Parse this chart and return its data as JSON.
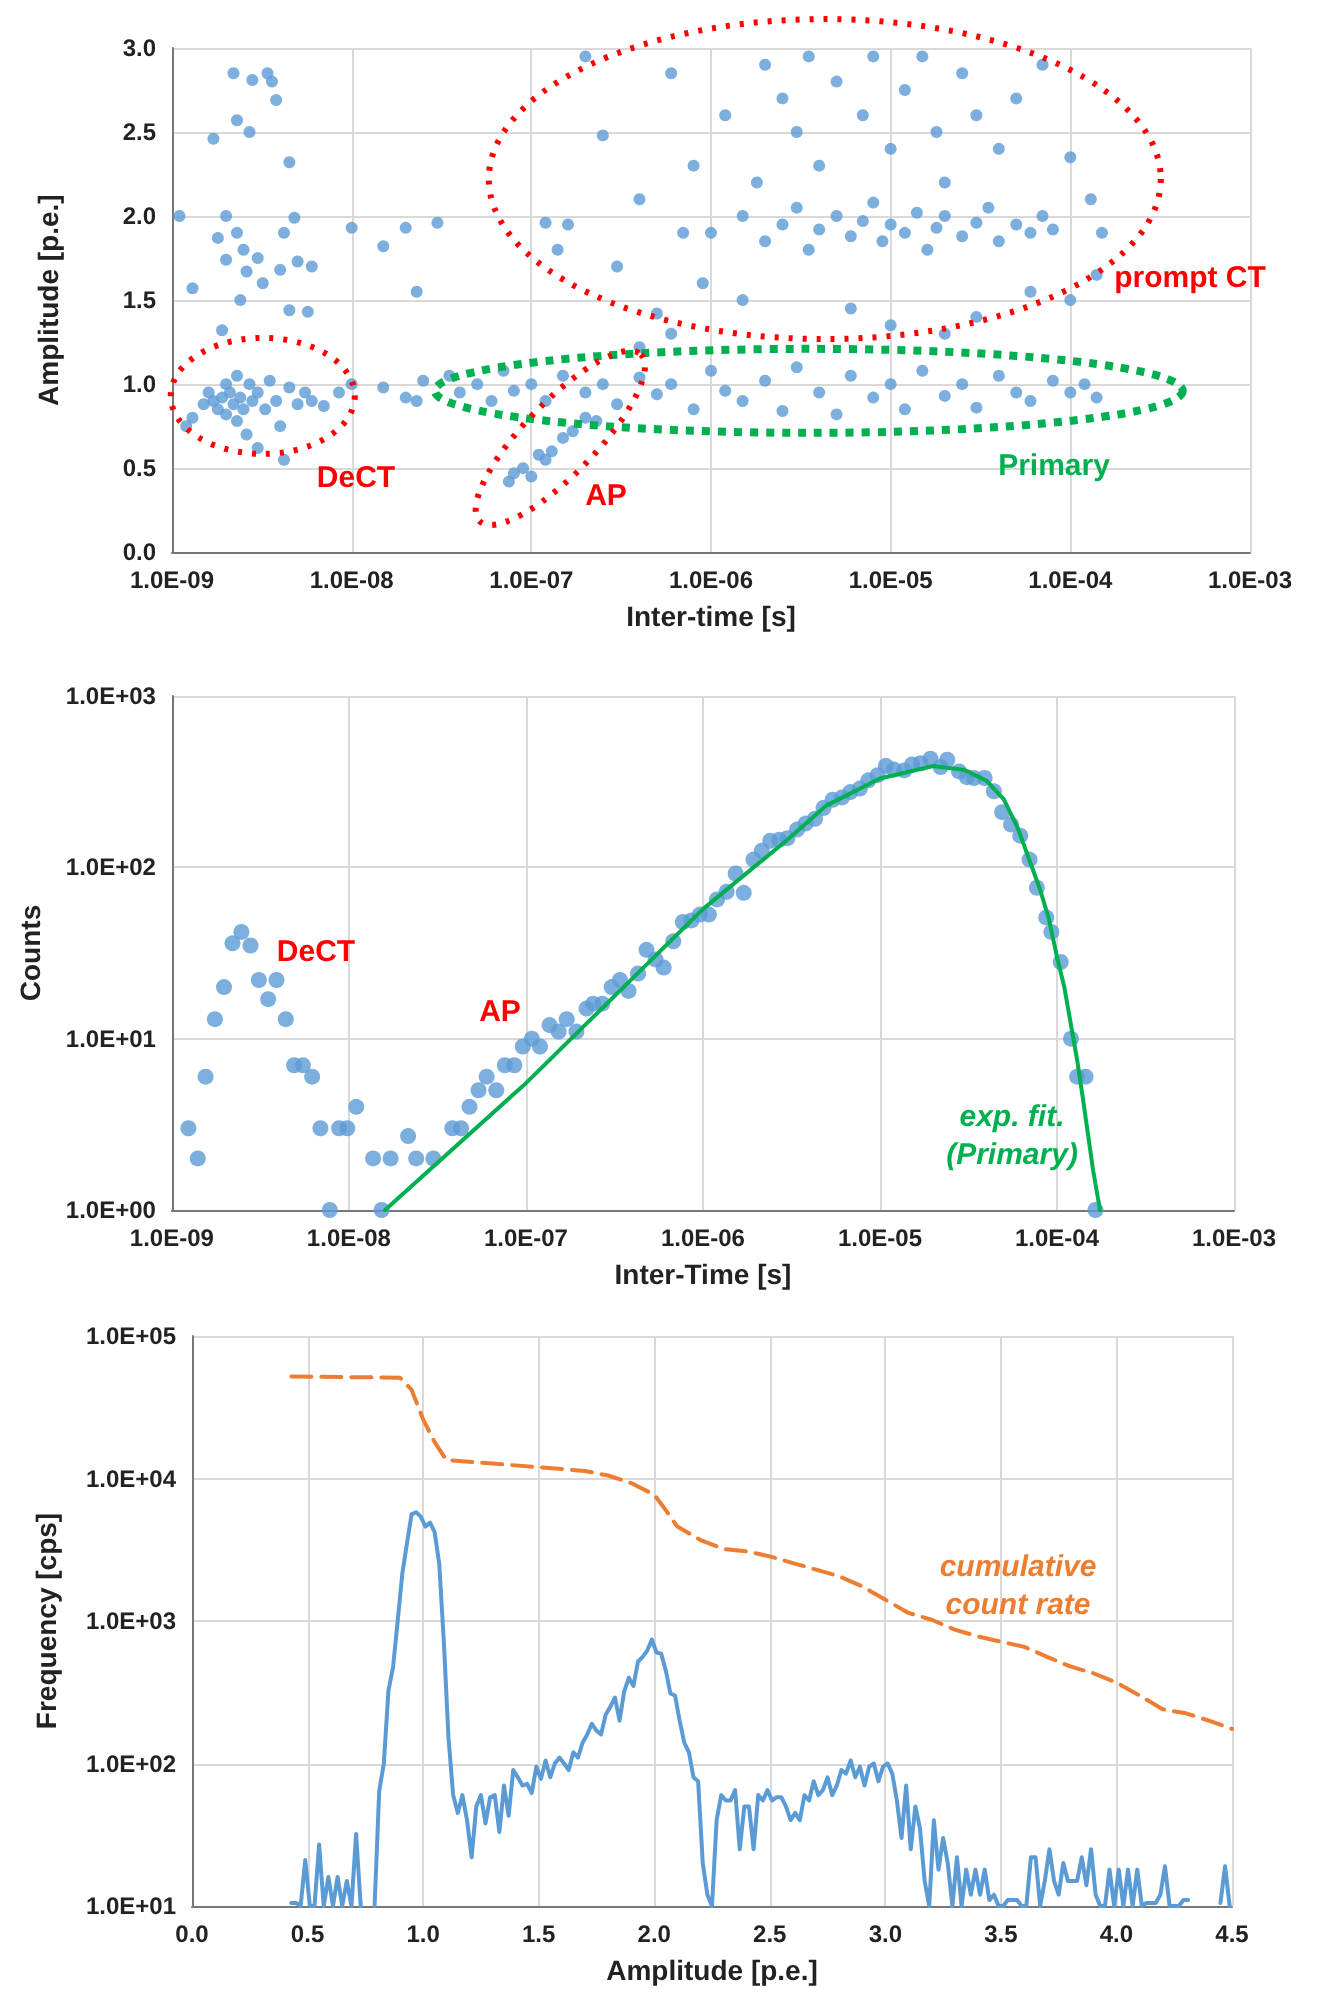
{
  "chart_data": [
    {
      "type": "scatter",
      "xlabel": "Inter-time [s]",
      "ylabel": "Amplitude [p.e.]",
      "log": "x",
      "grid": true,
      "marker": "circle",
      "xlim": [
        1e-09,
        0.001
      ],
      "xticks": [
        {
          "value": 1e-09,
          "label": "1.0E-09"
        },
        {
          "value": 1e-08,
          "label": "1.0E-08"
        },
        {
          "value": 1e-07,
          "label": "1.0E-07"
        },
        {
          "value": 1e-06,
          "label": "1.0E-06"
        },
        {
          "value": 1e-05,
          "label": "1.0E-05"
        },
        {
          "value": 0.0001,
          "label": "1.0E-04"
        },
        {
          "value": 0.001,
          "label": "1.0E-03"
        }
      ],
      "ylim": [
        0,
        3
      ],
      "yticks": [
        {
          "value": 0,
          "label": "0.0"
        },
        0.5,
        {
          "value": 1,
          "label": "1.0"
        },
        1.5,
        {
          "value": 2,
          "label": "2.0"
        },
        2.5,
        {
          "value": 3,
          "label": "3.0"
        }
      ],
      "series": [
        {
          "color": "#5b9bd5",
          "x": [
            1.2e-09,
            1.3e-09,
            1.5e-09,
            1.6e-09,
            1.7e-09,
            1.8e-09,
            1.9e-09,
            2e-09,
            2e-09,
            2.1e-09,
            2.2e-09,
            2.3e-09,
            2.3e-09,
            2.4e-09,
            2.5e-09,
            2.6e-09,
            2.7e-09,
            2.8e-09,
            3e-09,
            3e-09,
            3.3e-09,
            3.5e-09,
            3.8e-09,
            4e-09,
            4.2e-09,
            4.5e-09,
            5e-09,
            5.5e-09,
            6e-09,
            7e-09,
            8.5e-09,
            1e-08,
            1.5e-08,
            2e-08,
            2.3e-08,
            2.5e-08
          ],
          "values": [
            0.75,
            0.8,
            0.88,
            0.95,
            0.9,
            0.85,
            0.92,
            1.0,
            0.82,
            0.95,
            0.88,
            1.05,
            0.78,
            0.92,
            0.85,
            0.7,
            1.0,
            0.9,
            0.62,
            0.95,
            0.85,
            1.02,
            0.9,
            0.75,
            0.55,
            0.98,
            0.88,
            0.95,
            0.9,
            0.87,
            0.95,
            1.0,
            0.98,
            0.92,
            0.9,
            1.02
          ]
        },
        {
          "color": "#5b9bd5",
          "x": [
            1.1e-09,
            1.3e-09,
            1.7e-09,
            1.8e-09,
            1.9e-09,
            2e-09,
            2e-09,
            2.2e-09,
            2.3e-09,
            2.3e-09,
            2.4e-09,
            2.5e-09,
            2.6e-09,
            2.7e-09,
            2.8e-09,
            3e-09,
            3.2e-09,
            3.4e-09,
            3.6e-09,
            3.8e-09,
            4e-09,
            4.2e-09,
            4.5e-09,
            4.5e-09,
            4.8e-09,
            5e-09,
            5.7e-09,
            6e-09,
            1e-08,
            1.5e-08,
            2e-08,
            2.3e-08,
            3e-08
          ],
          "values": [
            2.0,
            1.57,
            2.46,
            1.87,
            1.32,
            1.74,
            2.0,
            2.85,
            1.9,
            2.57,
            1.5,
            1.8,
            1.67,
            2.5,
            2.81,
            1.75,
            1.6,
            2.85,
            2.8,
            2.69,
            1.68,
            1.9,
            2.32,
            1.44,
            1.99,
            1.73,
            1.43,
            1.7,
            1.93,
            1.82,
            1.93,
            1.55,
            1.96
          ]
        },
        {
          "color": "#5b9bd5",
          "x": [
            7.5e-08,
            8e-08,
            9e-08,
            1e-07,
            1.1e-07,
            1.2e-07,
            1.3e-07,
            1.5e-07,
            1.7e-07,
            2e-07,
            2.3e-07
          ],
          "values": [
            0.42,
            0.47,
            0.5,
            0.45,
            0.58,
            0.55,
            0.6,
            0.68,
            0.72,
            0.8,
            0.78
          ]
        },
        {
          "color": "#5b9bd5",
          "x": [
            3.5e-08,
            4e-08,
            5e-08,
            6e-08,
            7e-08,
            8e-08,
            1e-07,
            1.2e-07,
            1.5e-07,
            2e-07,
            2.5e-07,
            3e-07,
            4e-07,
            5e-07,
            6e-07,
            8e-07,
            1e-06,
            1.2e-06,
            1.5e-06,
            2e-06,
            2.5e-06,
            3e-06,
            4e-06,
            5e-06,
            6e-06,
            8e-06,
            1e-05,
            1.2e-05,
            1.5e-05,
            2e-05,
            2.5e-05,
            3e-05,
            4e-05,
            5e-05,
            6e-05,
            8e-05,
            0.0001,
            0.00012,
            0.00014
          ],
          "values": [
            1.05,
            0.95,
            1.0,
            0.9,
            1.08,
            0.96,
            1.0,
            0.9,
            1.05,
            0.95,
            1.0,
            0.88,
            1.04,
            0.94,
            1.0,
            0.85,
            1.08,
            0.96,
            0.9,
            1.02,
            0.84,
            1.1,
            0.95,
            0.82,
            1.05,
            0.92,
            1.0,
            0.85,
            1.08,
            0.93,
            1.0,
            0.86,
            1.05,
            0.95,
            0.9,
            1.02,
            0.95,
            1.0,
            0.92
          ]
        },
        {
          "color": "#5b9bd5",
          "x": [
            1.2e-07,
            1.4e-07,
            1.6e-07,
            2e-07,
            2.5e-07,
            3e-07,
            4e-07,
            5e-07,
            6e-07,
            7e-07,
            8e-07,
            9e-07,
            1.2e-06,
            1.5e-06,
            1.8e-06,
            2e-06,
            2.5e-06,
            3e-06,
            3.5e-06,
            4e-06,
            5e-06,
            6e-06,
            7e-06,
            8e-06,
            1e-05,
            1.2e-05,
            1.5e-05,
            1.8e-05,
            2e-05,
            2.5e-05,
            3e-05,
            4e-05,
            5e-05,
            7e-05,
            0.0001,
            0.00013,
            0.00015,
            0.00014,
            0.0001,
            6e-05,
            3e-05,
            2e-05,
            1e-05,
            4e-07,
            6e-07
          ],
          "values": [
            1.96,
            1.8,
            1.95,
            2.95,
            2.48,
            1.7,
            2.1,
            1.42,
            2.85,
            1.9,
            2.3,
            1.6,
            2.6,
            1.5,
            2.2,
            2.9,
            2.7,
            2.5,
            2.95,
            2.3,
            2.8,
            1.45,
            2.6,
            2.95,
            2.4,
            2.75,
            2.95,
            2.5,
            2.2,
            2.85,
            2.6,
            2.4,
            2.7,
            2.9,
            2.35,
            2.1,
            1.9,
            1.65,
            1.5,
            1.55,
            1.4,
            1.3,
            1.35,
            1.22,
            1.3
          ]
        },
        {
          "color": "#5b9bd5",
          "x": [
            1e-06,
            1.5e-06,
            2e-06,
            2.5e-06,
            3e-06,
            3.5e-06,
            4e-06,
            5e-06,
            6e-06,
            7e-06,
            8e-06,
            9e-06,
            1e-05,
            1.2e-05,
            1.4e-05,
            1.6e-05,
            1.8e-05,
            2e-05,
            2.5e-05,
            3e-05,
            3.5e-05,
            4e-05,
            5e-05,
            6e-05,
            7e-05,
            8e-05
          ],
          "values": [
            1.9,
            2.0,
            1.85,
            1.95,
            2.05,
            1.8,
            1.92,
            2.0,
            1.88,
            1.97,
            2.08,
            1.85,
            1.95,
            1.9,
            2.02,
            1.8,
            1.93,
            2.0,
            1.88,
            1.96,
            2.05,
            1.85,
            1.95,
            1.9,
            2.0,
            1.92
          ]
        }
      ],
      "annotations": [
        "prompt CT",
        "Primary",
        "DeCT",
        "AP"
      ]
    },
    {
      "type": "scatter",
      "xlabel": "Inter-Time [s]",
      "ylabel": "Counts",
      "log": "xy",
      "grid": true,
      "xlim": [
        1e-09,
        0.001
      ],
      "xticks": [
        {
          "value": 1e-09,
          "label": "1.0E-09"
        },
        {
          "value": 1e-08,
          "label": "1.0E-08"
        },
        {
          "value": 1e-07,
          "label": "1.0E-07"
        },
        {
          "value": 1e-06,
          "label": "1.0E-06"
        },
        {
          "value": 1e-05,
          "label": "1.0E-05"
        },
        {
          "value": 0.0001,
          "label": "1.0E-04"
        },
        {
          "value": 0.001,
          "label": "1.0E-03"
        }
      ],
      "ylim": [
        1,
        1000
      ],
      "yticks": [
        {
          "value": 1,
          "label": "1.0E+00"
        },
        {
          "value": 10,
          "label": "1.0E+01"
        },
        {
          "value": 100,
          "label": "1.0E+02"
        },
        {
          "value": 1000,
          "label": "1.0E+03"
        }
      ],
      "series": [
        {
          "type": "line",
          "marker": "none",
          "color": "#00b050",
          "x": [
            1.6e-08,
            1e-07,
            1e-06,
            3e-06,
            5e-06,
            1e-05,
            2e-05,
            3e-05,
            4e-05,
            5e-05,
            6e-05,
            8e-05,
            9e-05,
            0.0001,
            0.00011,
            0.00012,
            0.00013,
            0.00014,
            0.00016,
            0.000175
          ],
          "values": [
            1,
            5.5,
            57,
            145,
            230,
            330,
            390,
            370,
            320,
            250,
            170,
            75,
            50,
            30,
            20,
            12,
            7.5,
            4.5,
            1.7,
            1
          ]
        },
        {
          "marker": "circle",
          "color": "#5b9bd5",
          "x": [
            1.24e-09,
            1.4e-09,
            1.55e-09,
            1.75e-09,
            1.97e-09,
            2.2e-09,
            2.47e-09,
            2.78e-09,
            3.1e-09,
            3.5e-09,
            3.9e-09,
            4.4e-09,
            4.9e-09,
            5.5e-09,
            6.2e-09,
            6.9e-09,
            7.8e-09,
            8.8e-09,
            9.8e-09,
            1.1e-08,
            1.37e-08,
            1.53e-08,
            1.72e-08,
            2.16e-08,
            2.4e-08,
            3e-08,
            3.84e-08,
            4.3e-08,
            4.8e-08,
            5.4e-08,
            6e-08,
            6.8e-08,
            7.6e-08,
            8.6e-08,
            9.6e-08,
            1.08e-07,
            1.2e-07,
            1.36e-07,
            1.53e-07,
            1.7e-07,
            1.93e-07,
            2.2e-07,
            2.4e-07,
            2.7e-07,
            3.05e-07,
            3.4e-07,
            3.8e-07,
            4.3e-07,
            4.8e-07,
            5.4e-07,
            6e-07,
            6.8e-07,
            7.7e-07,
            8.6e-07,
            9.6e-07,
            1.08e-06,
            1.2e-06,
            1.36e-06,
            1.53e-06,
            1.7e-06,
            1.93e-06,
            2.15e-06,
            2.4e-06,
            2.7e-06,
            3e-06,
            3.4e-06,
            3.8e-06,
            4.3e-06,
            4.8e-06,
            5.4e-06,
            6.1e-06,
            6.8e-06,
            7.7e-06,
            8.6e-06,
            9.7e-06,
            1.08e-05,
            1.2e-05,
            1.37e-05,
            1.52e-05,
            1.7e-05,
            1.93e-05,
            2.2e-05,
            2.4e-05,
            2.8e-05,
            3.1e-05,
            3.4e-05,
            3.9e-05,
            4.4e-05,
            4.9e-05,
            5.5e-05,
            6.2e-05,
            7e-05,
            7.7e-05,
            8.7e-05,
            9.3e-05,
            0.000105,
            0.00012,
            0.00013,
            0.000145,
            0.000165
          ],
          "values": [
            3,
            2,
            6,
            13,
            20,
            36,
            42,
            35,
            22,
            17,
            22,
            13,
            7,
            7,
            6,
            3,
            1,
            3,
            3,
            4,
            2,
            1,
            2,
            2.7,
            2,
            2,
            3,
            3,
            4,
            5,
            6,
            5,
            7,
            7,
            9,
            10,
            9,
            12,
            11,
            13,
            11,
            15,
            16,
            16,
            20,
            22,
            19,
            24,
            33,
            29,
            26,
            37,
            48,
            49,
            53,
            53,
            65,
            72,
            92,
            71,
            111,
            125,
            143,
            145,
            148,
            166,
            180,
            192,
            222,
            248,
            256,
            275,
            288,
            322,
            345,
            391,
            372,
            368,
            398,
            405,
            430,
            385,
            425,
            363,
            336,
            332,
            332,
            278,
            210,
            178,
            153,
            111,
            76,
            51,
            42,
            28,
            10,
            6,
            6,
            1
          ]
        }
      ],
      "annotations": [
        "DeCT",
        "AP",
        "exp. fit.\n(Primary)"
      ]
    },
    {
      "type": "line",
      "xlabel": "Amplitude [p.e.]",
      "ylabel": "Frequency [cps]",
      "log": true,
      "grid": true,
      "marker": "none",
      "xlim": [
        0,
        4.5
      ],
      "xticks": [
        {
          "value": 0,
          "label": "0.0"
        },
        0.5,
        {
          "value": 1,
          "label": "1.0"
        },
        1.5,
        {
          "value": 2,
          "label": "2.0"
        },
        2.5,
        {
          "value": 3,
          "label": "3.0"
        },
        3.5,
        {
          "value": 4,
          "label": "4.0"
        },
        4.5
      ],
      "ylim": [
        10,
        100000
      ],
      "yticks": [
        {
          "value": 10,
          "label": "1.0E+01"
        },
        {
          "value": 100,
          "label": "1.0E+02"
        },
        {
          "value": 1000,
          "label": "1.0E+03"
        },
        {
          "value": 10000,
          "label": "1.0E+04"
        },
        {
          "value": 100000,
          "label": "1.0E+05"
        }
      ],
      "series": [
        {
          "color": "#5b9bd5",
          "x": [
            0.43,
            0.45,
            0.47,
            0.49,
            0.51,
            0.53,
            0.55,
            0.57,
            0.59,
            0.61,
            0.63,
            0.65,
            0.67,
            0.69,
            0.71,
            0.73,
            0.75,
            0.77,
            0.79,
            0.81,
            0.83,
            0.85,
            0.87,
            0.89,
            0.91,
            0.93,
            0.95,
            0.97,
            0.99,
            1.01,
            1.03,
            1.05,
            1.07,
            1.09,
            1.11,
            1.13,
            1.15,
            1.17,
            1.19,
            1.21,
            1.23,
            1.25,
            1.27,
            1.29,
            1.31,
            1.33,
            1.35,
            1.37,
            1.39,
            1.41,
            1.43,
            1.45,
            1.47,
            1.49,
            1.51,
            1.53,
            1.55,
            1.57,
            1.59,
            1.61,
            1.63,
            1.65,
            1.67,
            1.69,
            1.71,
            1.73,
            1.75,
            1.77,
            1.79,
            1.81,
            1.83,
            1.85,
            1.87,
            1.89,
            1.91,
            1.93,
            1.95,
            1.97,
            1.99,
            2.01,
            2.03,
            2.05,
            2.07,
            2.09,
            2.11,
            2.13,
            2.15,
            2.17,
            2.19,
            2.21,
            2.23,
            2.25,
            2.27,
            2.29,
            2.31,
            2.33,
            2.35,
            2.37,
            2.39,
            2.41,
            2.43,
            2.45,
            2.47,
            2.49,
            2.51,
            2.53,
            2.55,
            2.57,
            2.59,
            2.61,
            2.63,
            2.65,
            2.67,
            2.69,
            2.71,
            2.73,
            2.75,
            2.77,
            2.79,
            2.81,
            2.83,
            2.85,
            2.87,
            2.89,
            2.91,
            2.93,
            2.95,
            2.97,
            2.99,
            3.01,
            3.03,
            3.05,
            3.07,
            3.09,
            3.11,
            3.13,
            3.15,
            3.17,
            3.19,
            3.21,
            3.23,
            3.25,
            3.27,
            3.29,
            3.31,
            3.33,
            3.35,
            3.37,
            3.39,
            3.41,
            3.43,
            3.45,
            3.47,
            3.49,
            3.51,
            3.53,
            3.55,
            3.57,
            3.59,
            3.61,
            3.63,
            3.65,
            3.67,
            3.69,
            3.71,
            3.73,
            3.75,
            3.77,
            3.79,
            3.81,
            3.83,
            3.85,
            3.87,
            3.89,
            3.91,
            3.93,
            3.95,
            3.97,
            3.99,
            4.01,
            4.03,
            4.05,
            4.07,
            4.09,
            4.11,
            4.13,
            4.15,
            4.17,
            4.19,
            4.21,
            4.23,
            4.25,
            4.27,
            4.29,
            4.31,
            4.33,
            4.45,
            4.47,
            4.49
          ],
          "values": [
            10.5,
            10.5,
            10,
            21,
            10,
            10,
            27,
            10,
            16,
            10,
            16,
            10,
            15,
            10,
            32,
            10,
            null,
            null,
            10,
            64,
            100,
            325,
            475,
            1000,
            2150,
            3500,
            5600,
            5800,
            5400,
            4600,
            4900,
            4200,
            2500,
            700,
            150,
            60,
            45,
            60,
            40,
            22,
            50,
            60,
            38,
            58,
            60,
            33,
            70,
            43,
            90,
            80,
            70,
            72,
            62,
            95,
            78,
            105,
            80,
            100,
            110,
            100,
            90,
            120,
            110,
            140,
            160,
            190,
            170,
            160,
            220,
            250,
            290,
            200,
            320,
            400,
            350,
            520,
            560,
            620,
            740,
            600,
            590,
            450,
            310,
            300,
            200,
            140,
            120,
            80,
            75,
            20,
            12,
            10,
            40,
            60,
            55,
            55,
            65,
            25,
            50,
            50,
            25,
            60,
            55,
            65,
            55,
            58,
            58,
            50,
            40,
            45,
            40,
            60,
            55,
            75,
            60,
            65,
            80,
            60,
            70,
            90,
            85,
            105,
            80,
            95,
            70,
            95,
            100,
            75,
            95,
            100,
            85,
            55,
            30,
            70,
            25,
            50,
            35,
            15,
            10,
            40,
            18,
            30,
            20,
            10,
            22,
            10,
            18,
            12,
            18,
            12,
            18,
            11,
            12,
            10,
            10,
            11,
            11,
            11,
            10,
            10,
            22,
            22,
            10,
            15,
            25,
            15,
            12,
            20,
            15,
            15,
            15,
            22,
            14,
            25,
            12,
            10,
            10,
            18,
            10,
            18,
            10,
            18,
            10,
            18,
            10,
            10.5,
            10.5,
            10.5,
            12,
            19,
            10,
            10,
            10,
            11,
            11,
            null,
            10.5,
            19,
            10
          ]
        },
        {
          "color": "#ed7d31",
          "line_style": "dashed",
          "x": [
            0.43,
            0.9,
            0.95,
            1.0,
            1.05,
            1.1,
            1.5,
            1.7,
            1.8,
            1.9,
            2.0,
            2.05,
            2.1,
            2.2,
            2.3,
            2.4,
            2.5,
            2.6,
            2.8,
            2.9,
            3.0,
            3.1,
            3.2,
            3.3,
            3.4,
            3.5,
            3.6,
            3.7,
            3.8,
            3.9,
            4.0,
            4.1,
            4.2,
            4.3,
            4.4,
            4.5
          ],
          "values": [
            52000,
            51000,
            42000,
            26000,
            18000,
            13500,
            12000,
            11300,
            10500,
            9300,
            7700,
            6000,
            4600,
            3700,
            3200,
            3080,
            2840,
            2550,
            2060,
            1750,
            1410,
            1140,
            1020,
            870,
            780,
            715,
            660,
            560,
            480,
            430,
            370,
            300,
            240,
            225,
            200,
            175
          ]
        }
      ],
      "annotations": [
        "cumulative\ncount rate"
      ]
    }
  ]
}
